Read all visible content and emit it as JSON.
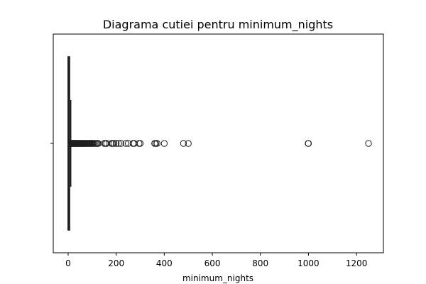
{
  "chart_data": {
    "type": "box",
    "orientation": "horizontal",
    "title": "Diagrama cutiei pentru minimum_nights",
    "xlabel": "minimum_nights",
    "ylabel": "",
    "xlim": [
      -62,
      1312
    ],
    "xticks": [
      0,
      200,
      400,
      600,
      800,
      1000,
      1200
    ],
    "xtick_labels": [
      "0",
      "200",
      "400",
      "600",
      "800",
      "1000",
      "1200"
    ],
    "yticks": [
      ""
    ],
    "grid": false,
    "box": {
      "whisker_low": 1,
      "q1": 1,
      "median": 2,
      "q3": 5,
      "whisker_high": 11
    },
    "outliers": [
      12,
      14,
      15,
      16,
      18,
      20,
      21,
      22,
      24,
      25,
      26,
      28,
      29,
      30,
      31,
      33,
      35,
      36,
      38,
      40,
      42,
      44,
      45,
      48,
      50,
      52,
      55,
      56,
      58,
      60,
      62,
      63,
      65,
      68,
      70,
      72,
      75,
      77,
      80,
      84,
      85,
      88,
      90,
      92,
      95,
      99,
      100,
      104,
      105,
      110,
      115,
      120,
      122,
      125,
      150,
      155,
      160,
      180,
      185,
      190,
      200,
      210,
      220,
      240,
      250,
      270,
      275,
      295,
      300,
      360,
      365,
      370,
      400,
      480,
      500,
      999,
      1000,
      1250
    ],
    "colors": {
      "box_line": "#1f1f1f",
      "outlier_edge": "#1f1f1f",
      "frame": "#000000"
    }
  }
}
